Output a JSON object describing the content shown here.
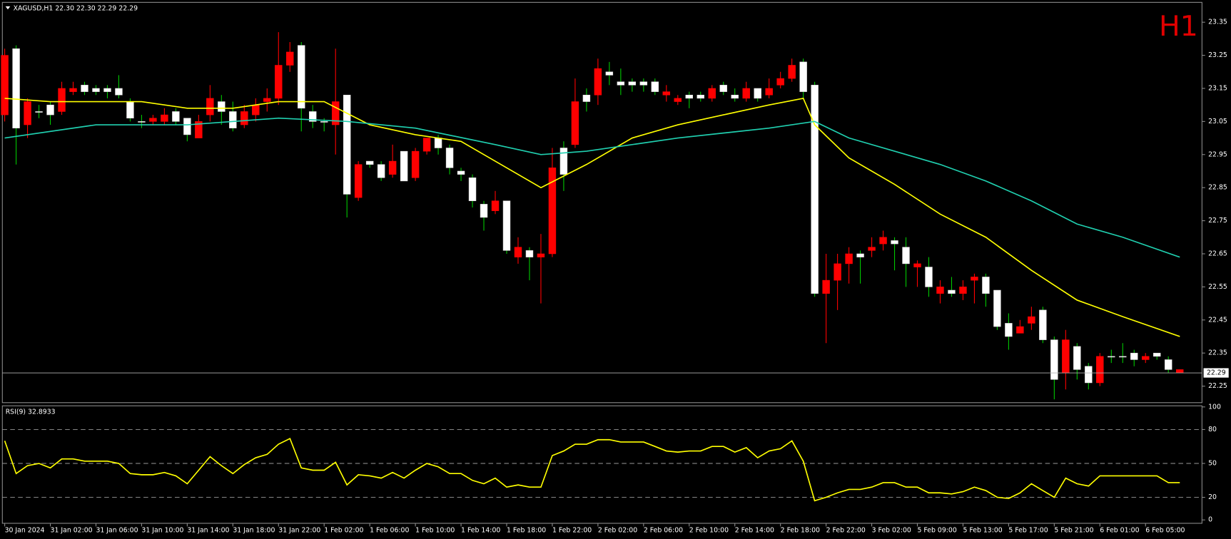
{
  "chart_data": [
    {
      "type": "candlestick",
      "title": "XAGUSD,H1  22.30 22.30 22.29 22.29",
      "timeframe_label": "H1",
      "up_color": "#ffffff",
      "down_color": "#ff0000",
      "wick_color": "#00c800",
      "categories": [
        "30 Jan 2024",
        null,
        null,
        null,
        "31 Jan 02:00",
        null,
        null,
        null,
        "31 Jan 06:00",
        null,
        null,
        null,
        "31 Jan 10:00",
        null,
        null,
        null,
        "31 Jan 14:00",
        null,
        null,
        null,
        "31 Jan 18:00",
        null,
        null,
        null,
        "31 Jan 22:00",
        null,
        null,
        null,
        "1 Feb 02:00",
        null,
        null,
        null,
        "1 Feb 06:00",
        null,
        null,
        null,
        "1 Feb 10:00",
        null,
        null,
        null,
        "1 Feb 14:00",
        null,
        null,
        null,
        "1 Feb 18:00",
        null,
        null,
        null,
        "1 Feb 22:00",
        null,
        null,
        null,
        "2 Feb 02:00",
        null,
        null,
        null,
        "2 Feb 06:00",
        null,
        null,
        null,
        "2 Feb 10:00",
        null,
        null,
        null,
        "2 Feb 14:00",
        null,
        null,
        null,
        "2 Feb 18:00",
        null,
        null,
        null,
        "2 Feb 22:00",
        null,
        null,
        null,
        "3 Feb 02:00",
        null,
        null,
        null,
        "5 Feb 09:00",
        null,
        null,
        null,
        "5 Feb 13:00",
        null,
        null,
        null,
        "5 Feb 17:00",
        null,
        null,
        null,
        "5 Feb 21:00",
        null,
        null,
        null,
        "6 Feb 01:00",
        null,
        null,
        null,
        "6 Feb 05:00",
        null,
        null,
        null
      ],
      "open": [
        23.25,
        23.03,
        23.11,
        23.08,
        23.07,
        23.15,
        23.15,
        23.14,
        23.14,
        23.14,
        23.13,
        23.06,
        23.05,
        23.06,
        23.07,
        23.05,
        23.01,
        23.05,
        23.12,
        23.08,
        23.03,
        23.08,
        23.1,
        23.12,
        23.22,
        23.26,
        23.09,
        23.05,
        23.05,
        23.11,
        22.83,
        22.92,
        22.92,
        22.88,
        22.93,
        22.87,
        22.96,
        23.0,
        22.97,
        22.91,
        22.89,
        22.81,
        22.76,
        22.81,
        22.66,
        22.67,
        22.64,
        22.65,
        22.91,
        22.89,
        23.11,
        23.11,
        23.21,
        23.19,
        23.16,
        23.16,
        23.16,
        23.14,
        23.14,
        23.12,
        23.12,
        23.12,
        23.15,
        23.14,
        23.12,
        23.15,
        23.12,
        23.15,
        23.18,
        23.22,
        23.14,
        22.53,
        22.57,
        22.62,
        22.65,
        22.64,
        22.67,
        22.7,
        22.68,
        22.62,
        22.62,
        22.55,
        22.55,
        22.53,
        22.55,
        22.58,
        22.53,
        22.43,
        22.4,
        22.43,
        22.46,
        22.39,
        22.27,
        22.39,
        22.3,
        22.26,
        22.34,
        22.34,
        22.34,
        22.33,
        22.34,
        22.34,
        22.3,
        22.3
      ],
      "high": [
        23.27,
        23.28,
        23.12,
        23.1,
        23.11,
        23.17,
        23.17,
        23.17,
        23.16,
        23.16,
        23.19,
        23.12,
        23.07,
        23.07,
        23.09,
        23.09,
        23.06,
        23.07,
        23.16,
        23.13,
        23.11,
        23.1,
        23.12,
        23.15,
        23.32,
        23.29,
        23.29,
        23.1,
        23.06,
        23.27,
        23.13,
        22.93,
        22.93,
        22.93,
        22.98,
        22.96,
        22.97,
        23.0,
        23.01,
        22.98,
        22.91,
        22.89,
        22.81,
        22.84,
        22.81,
        22.7,
        22.67,
        22.71,
        22.97,
        22.99,
        23.18,
        23.15,
        23.24,
        23.23,
        23.21,
        23.18,
        23.18,
        23.18,
        23.16,
        23.13,
        23.14,
        23.14,
        23.16,
        23.17,
        23.15,
        23.17,
        23.15,
        23.18,
        23.2,
        23.24,
        23.24,
        23.17,
        22.65,
        22.65,
        22.67,
        22.66,
        22.7,
        22.72,
        22.7,
        22.7,
        22.63,
        22.64,
        22.57,
        22.58,
        22.57,
        22.59,
        22.59,
        22.54,
        22.47,
        22.45,
        22.49,
        22.49,
        22.4,
        22.42,
        22.38,
        22.32,
        22.35,
        22.36,
        22.38,
        22.36,
        22.35,
        22.35,
        22.34,
        22.3
      ],
      "low": [
        23.05,
        22.92,
        23.0,
        23.06,
        23.04,
        23.07,
        23.13,
        23.13,
        23.13,
        23.12,
        23.12,
        23.05,
        23.03,
        23.04,
        23.04,
        23.04,
        22.99,
        23.0,
        23.05,
        23.04,
        23.02,
        23.03,
        23.05,
        23.08,
        23.1,
        23.2,
        23.02,
        23.03,
        23.02,
        22.95,
        22.76,
        22.81,
        22.91,
        22.87,
        22.88,
        22.87,
        22.87,
        22.95,
        22.95,
        22.89,
        22.87,
        22.79,
        22.72,
        22.77,
        22.65,
        22.62,
        22.57,
        22.5,
        22.64,
        22.84,
        22.97,
        23.08,
        23.1,
        23.16,
        23.13,
        23.14,
        23.14,
        23.13,
        23.11,
        23.1,
        23.09,
        23.11,
        23.11,
        23.13,
        23.11,
        23.11,
        23.11,
        23.12,
        23.15,
        23.17,
        23.12,
        22.52,
        22.38,
        22.48,
        22.56,
        22.56,
        22.64,
        22.66,
        22.6,
        22.55,
        22.55,
        22.52,
        22.5,
        22.52,
        22.51,
        22.5,
        22.49,
        22.42,
        22.36,
        22.41,
        22.42,
        22.38,
        22.21,
        22.24,
        22.27,
        22.24,
        22.25,
        22.32,
        22.32,
        22.31,
        22.32,
        22.33,
        22.29,
        22.29
      ],
      "close": [
        23.07,
        23.27,
        23.04,
        23.08,
        23.1,
        23.08,
        23.14,
        23.16,
        23.15,
        23.15,
        23.15,
        23.11,
        23.05,
        23.05,
        23.05,
        23.08,
        23.06,
        23.0,
        23.07,
        23.11,
        23.08,
        23.04,
        23.07,
        23.11,
        23.12,
        23.22,
        23.28,
        23.08,
        23.05,
        23.04,
        23.13,
        22.82,
        22.93,
        22.92,
        22.89,
        22.96,
        22.88,
        22.96,
        23.0,
        22.97,
        22.9,
        22.88,
        22.8,
        22.78,
        22.81,
        22.64,
        22.66,
        22.64,
        22.65,
        22.97,
        22.98,
        23.13,
        23.13,
        23.2,
        23.17,
        23.17,
        23.17,
        23.17,
        23.13,
        23.11,
        23.13,
        23.13,
        23.12,
        23.16,
        23.13,
        23.12,
        23.15,
        23.13,
        23.16,
        23.18,
        23.23,
        23.16,
        22.53,
        22.57,
        22.62,
        22.65,
        22.66,
        22.68,
        22.69,
        22.67,
        22.61,
        22.61,
        22.53,
        22.54,
        22.53,
        22.57,
        22.58,
        22.54,
        22.44,
        22.41,
        22.44,
        22.48,
        22.39,
        22.29,
        22.37,
        22.31,
        22.26,
        22.34,
        22.34,
        22.35,
        22.33,
        22.35,
        22.33,
        22.29
      ],
      "lines": [
        {
          "color": "#ffff00",
          "x": [
            0,
            4,
            12,
            16,
            20,
            24,
            28,
            32,
            36,
            40,
            43,
            47,
            51,
            55,
            59,
            63,
            67,
            70,
            71,
            74,
            78,
            82,
            86,
            90,
            94,
            98,
            103
          ],
          "values": [
            23.12,
            23.11,
            23.11,
            23.09,
            23.09,
            23.11,
            23.11,
            23.04,
            23.01,
            22.99,
            22.93,
            22.85,
            22.92,
            23.0,
            23.04,
            23.07,
            23.1,
            23.12,
            23.04,
            22.94,
            22.86,
            22.77,
            22.7,
            22.6,
            22.51,
            22.46,
            22.4
          ]
        },
        {
          "color": "#20d0b0",
          "x": [
            0,
            8,
            16,
            24,
            30,
            36,
            43,
            47,
            51,
            59,
            67,
            71,
            74,
            82,
            86,
            90,
            94,
            98,
            103
          ],
          "values": [
            23.0,
            23.04,
            23.04,
            23.06,
            23.05,
            23.03,
            22.98,
            22.95,
            22.96,
            23.0,
            23.03,
            23.05,
            23.0,
            22.92,
            22.87,
            22.81,
            22.74,
            22.7,
            22.64
          ]
        }
      ],
      "last_price": 22.29,
      "ylim": [
        22.2,
        23.41
      ],
      "yticks": [
        23.35,
        23.25,
        23.15,
        23.05,
        22.95,
        22.85,
        22.75,
        22.65,
        22.55,
        22.45,
        22.35,
        22.25
      ]
    },
    {
      "type": "line",
      "title": "RSI(9) 32.8933",
      "color": "#ffff00",
      "values": [
        70,
        41,
        48,
        50,
        46,
        54,
        54,
        52,
        52,
        52,
        50,
        41,
        40,
        40,
        42,
        39,
        32,
        44,
        56,
        48,
        41,
        49,
        55,
        58,
        67,
        72,
        46,
        44,
        44,
        51,
        31,
        40,
        39,
        37,
        42,
        37,
        44,
        50,
        47,
        41,
        41,
        35,
        32,
        37,
        29,
        31,
        29,
        29,
        57,
        61,
        67,
        67,
        71,
        71,
        69,
        69,
        69,
        65,
        61,
        60,
        61,
        61,
        65,
        65,
        60,
        64,
        55,
        61,
        63,
        70,
        52,
        17,
        20,
        24,
        27,
        27,
        29,
        33,
        33,
        29,
        29,
        24,
        24,
        23,
        25,
        29,
        26,
        20,
        19,
        24,
        32,
        26,
        20,
        37,
        32,
        30,
        39,
        39,
        39,
        39,
        39,
        39,
        33,
        33
      ],
      "ylim": [
        -3,
        101
      ],
      "yticks": [
        0,
        20,
        50,
        80,
        100
      ],
      "levels": [
        20,
        50,
        80
      ]
    }
  ]
}
